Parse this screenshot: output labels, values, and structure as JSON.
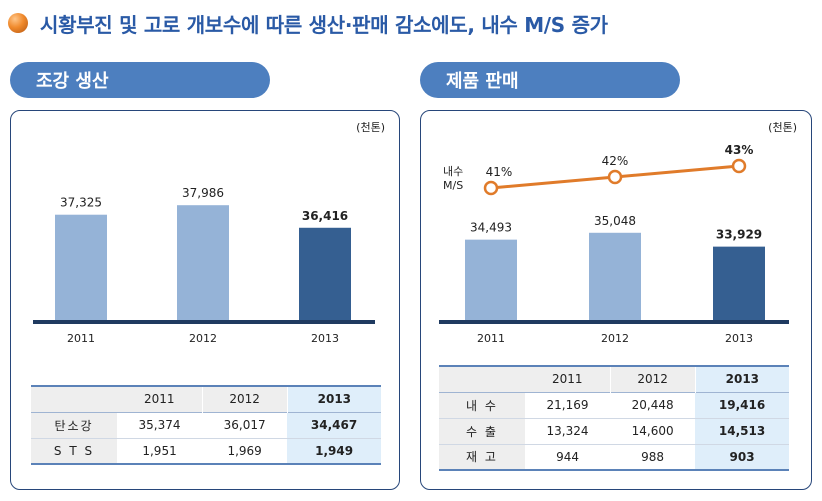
{
  "page_title": "시황부진 및 고로 개보수에 따른 생산·판매 감소에도, 내수 M/S 증가",
  "left": {
    "header": "조강 생산",
    "unit": "(천톤)",
    "table": {
      "columns": [
        "2011",
        "2012",
        "2013"
      ],
      "rows": [
        {
          "label": "탄소강",
          "values": [
            "35,374",
            "36,017",
            "34,467"
          ]
        },
        {
          "label": "S T S",
          "values": [
            "1,951",
            "1,969",
            "1,949"
          ]
        }
      ]
    }
  },
  "right": {
    "header": "제품 판매",
    "unit": "(천톤)",
    "line_label": "내수 M/S",
    "table": {
      "columns": [
        "2011",
        "2012",
        "2013"
      ],
      "rows": [
        {
          "label": "내 수",
          "values": [
            "21,169",
            "20,448",
            "19,416"
          ]
        },
        {
          "label": "수 출",
          "values": [
            "13,324",
            "14,600",
            "14,513"
          ]
        },
        {
          "label": "재 고",
          "values": [
            "944",
            "988",
            "903"
          ]
        }
      ]
    }
  },
  "colors": {
    "bar_light": "#95b3d7",
    "bar_dark": "#355f91",
    "baseline": "#1f3a60",
    "line": "#e07b2a",
    "header_bg": "#4d7fbf"
  },
  "chart_data": [
    {
      "type": "bar",
      "title": "조강 생산",
      "categories": [
        "2011",
        "2012",
        "2013"
      ],
      "values": [
        37325,
        37986,
        36416
      ],
      "value_labels": [
        "37,325",
        "37,986",
        "36,416"
      ],
      "unit": "(천톤)",
      "highlight_index": 2
    },
    {
      "type": "bar",
      "title": "제품 판매",
      "categories": [
        "2011",
        "2012",
        "2013"
      ],
      "values": [
        34493,
        35048,
        33929
      ],
      "value_labels": [
        "34,493",
        "35,048",
        "33,929"
      ],
      "unit": "(천톤)",
      "highlight_index": 2,
      "line_series": {
        "name": "내수 M/S",
        "values": [
          41,
          42,
          43
        ],
        "value_labels": [
          "41%",
          "42%",
          "43%"
        ]
      }
    }
  ]
}
